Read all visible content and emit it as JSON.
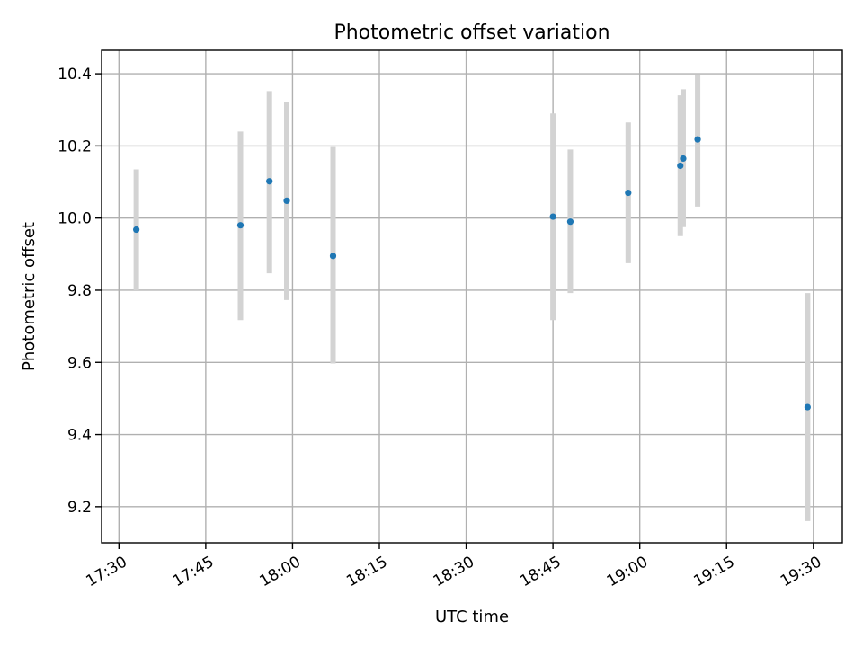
{
  "chart_data": {
    "type": "scatter",
    "title": "Photometric offset variation",
    "xlabel": "UTC time",
    "ylabel": "Photometric offset",
    "xlim": [
      "17:27",
      "19:35"
    ],
    "ylim": [
      9.1,
      10.465
    ],
    "x_ticks": [
      "17:30",
      "17:45",
      "18:00",
      "18:15",
      "18:30",
      "18:45",
      "19:00",
      "19:15",
      "19:30"
    ],
    "y_ticks": [
      9.2,
      9.4,
      9.6,
      9.8,
      10.0,
      10.2,
      10.4
    ],
    "grid": true,
    "legend": "none",
    "colors": {
      "points": "#1f77b4",
      "error_bars": "#d3d3d3"
    },
    "points": [
      {
        "x": "17:33",
        "y": 9.968,
        "y_low": 9.8,
        "y_high": 10.135
      },
      {
        "x": "17:51",
        "y": 9.98,
        "y_low": 9.717,
        "y_high": 10.24
      },
      {
        "x": "17:56",
        "y": 10.102,
        "y_low": 9.847,
        "y_high": 10.352
      },
      {
        "x": "17:59",
        "y": 10.048,
        "y_low": 9.773,
        "y_high": 10.323
      },
      {
        "x": "18:07",
        "y": 9.895,
        "y_low": 9.597,
        "y_high": 10.197
      },
      {
        "x": "18:45",
        "y": 10.004,
        "y_low": 9.717,
        "y_high": 10.29
      },
      {
        "x": "18:48",
        "y": 9.99,
        "y_low": 9.792,
        "y_high": 10.19
      },
      {
        "x": "18:58",
        "y": 10.07,
        "y_low": 9.875,
        "y_high": 10.265
      },
      {
        "x": "19:07",
        "y": 10.145,
        "y_low": 9.95,
        "y_high": 10.34
      },
      {
        "x": "19:07.5",
        "y": 10.165,
        "y_low": 9.975,
        "y_high": 10.357
      },
      {
        "x": "19:10",
        "y": 10.218,
        "y_low": 10.032,
        "y_high": 10.398
      },
      {
        "x": "19:29",
        "y": 9.476,
        "y_low": 9.16,
        "y_high": 9.792
      }
    ]
  }
}
